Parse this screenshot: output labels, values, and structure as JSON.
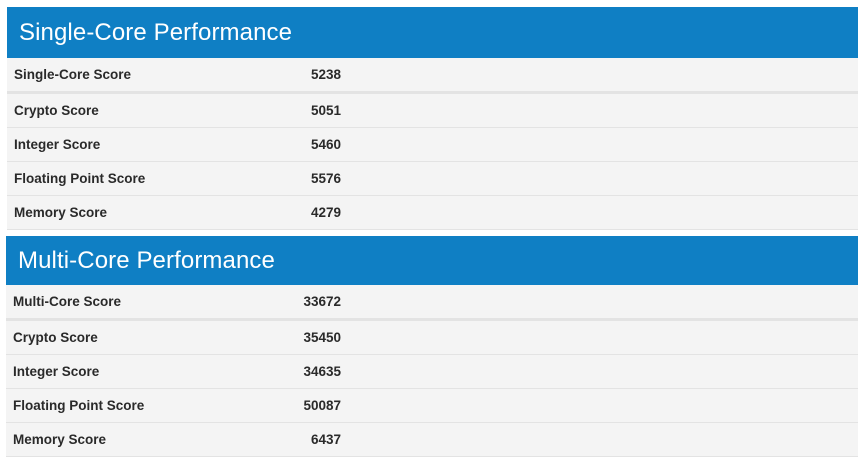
{
  "single_core": {
    "title": "Single-Core Performance",
    "rows": [
      {
        "label": "Single-Core Score",
        "value": "5238"
      },
      {
        "label": "Crypto Score",
        "value": "5051"
      },
      {
        "label": "Integer Score",
        "value": "5460"
      },
      {
        "label": "Floating Point Score",
        "value": "5576"
      },
      {
        "label": "Memory Score",
        "value": "4279"
      }
    ]
  },
  "multi_core": {
    "title": "Multi-Core Performance",
    "rows": [
      {
        "label": "Multi-Core Score",
        "value": "33672"
      },
      {
        "label": "Crypto Score",
        "value": "35450"
      },
      {
        "label": "Integer Score",
        "value": "34635"
      },
      {
        "label": "Floating Point Score",
        "value": "50087"
      },
      {
        "label": "Memory Score",
        "value": "6437"
      }
    ]
  },
  "colors": {
    "header_bg": "#0f7fc4",
    "row_bg": "#f4f4f4"
  }
}
